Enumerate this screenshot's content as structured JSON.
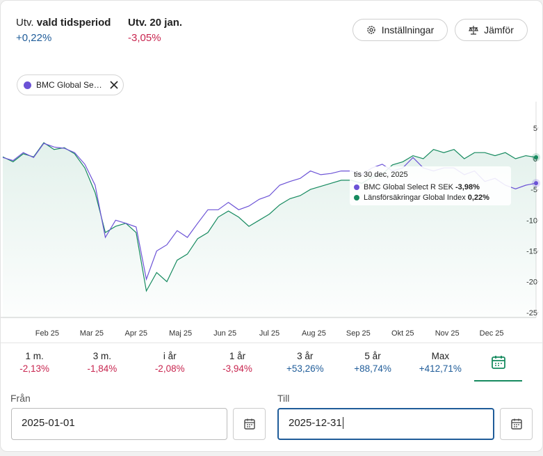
{
  "header": {
    "stats": [
      {
        "label_prefix": "Utv.",
        "label_bold": "vald tidsperiod",
        "value": "+0,22%"
      },
      {
        "label_bold": "Utv. 20 jan.",
        "value": "-3,05%"
      }
    ],
    "buttons": [
      "Inställningar",
      "Jämför"
    ]
  },
  "chip": "BMC Global Se…",
  "chart": {
    "type": "line",
    "ylim": [
      -26,
      9
    ],
    "yticks": [
      5,
      0,
      -5,
      -10,
      -15,
      -20,
      -25
    ],
    "xtick_labels": [
      "Feb 25",
      "Mar 25",
      "Apr 25",
      "Maj 25",
      "Jun 25",
      "Jul 25",
      "Aug 25",
      "Sep 25",
      "Okt 25",
      "Nov 25",
      "Dec 25"
    ],
    "series": [
      {
        "name": "Länsförsäkringar Global Index",
        "color": "#168a5f",
        "area": true,
        "values": [
          0.3,
          -0.5,
          0.8,
          0.3,
          2.6,
          1.5,
          1.8,
          0.8,
          -1.5,
          -5.5,
          -12,
          -11,
          -10.5,
          -12,
          -21.5,
          -18.5,
          -20,
          -16.5,
          -15.5,
          -13,
          -12,
          -9.5,
          -8.5,
          -9.5,
          -11,
          -10,
          -9,
          -7.5,
          -6.5,
          -6,
          -5,
          -4.5,
          -4,
          -3.5,
          -3.5,
          -4,
          -3,
          -2.5,
          -1,
          -0.5,
          0.5,
          0,
          1.5,
          1,
          1.5,
          0,
          1,
          1,
          0.5,
          1,
          0,
          0.5,
          0.22
        ]
      },
      {
        "name": "BMC Global Select R SEK",
        "color": "#6b52d6",
        "area": false,
        "values": [
          0.2,
          -0.3,
          1.0,
          0.2,
          2.5,
          1.9,
          1.7,
          1.0,
          -0.9,
          -4.3,
          -12.8,
          -10,
          -10.5,
          -11.1,
          -19.6,
          -15,
          -14,
          -11.7,
          -12.8,
          -10.5,
          -8.3,
          -8.3,
          -7.1,
          -8.3,
          -7.7,
          -6.6,
          -6.0,
          -4.3,
          -3.7,
          -3.2,
          -2.0,
          -2.6,
          -2.4,
          -2.0,
          -2.0,
          -2.6,
          -1.5,
          -0.9,
          -2.0,
          -1.5,
          0.2,
          -1.5,
          -2.0,
          -1.5,
          -1.5,
          -2.6,
          -2.0,
          -3.7,
          -3.2,
          -4.3,
          -4.9,
          -4.3,
          -3.98
        ]
      }
    ],
    "tooltip": {
      "date": "tis 30 dec, 2025",
      "items": [
        {
          "name": "BMC Global Select R SEK",
          "value": "-3,98%"
        },
        {
          "name": "Länsförsäkringar Global Index",
          "value": "0,22%"
        }
      ]
    }
  },
  "periods": [
    {
      "label": "1 m.",
      "value": "-2,13%"
    },
    {
      "label": "3 m.",
      "value": "-1,84%"
    },
    {
      "label": "i år",
      "value": "-2,08%"
    },
    {
      "label": "1 år",
      "value": "-3,94%"
    },
    {
      "label": "3 år",
      "value": "+53,26%"
    },
    {
      "label": "5 år",
      "value": "+88,74%"
    },
    {
      "label": "Max",
      "value": "+412,71%"
    }
  ],
  "dates": {
    "from_label": "Från",
    "from_value": "2025-01-01",
    "to_label": "Till",
    "to_value": "2025-12-31"
  }
}
